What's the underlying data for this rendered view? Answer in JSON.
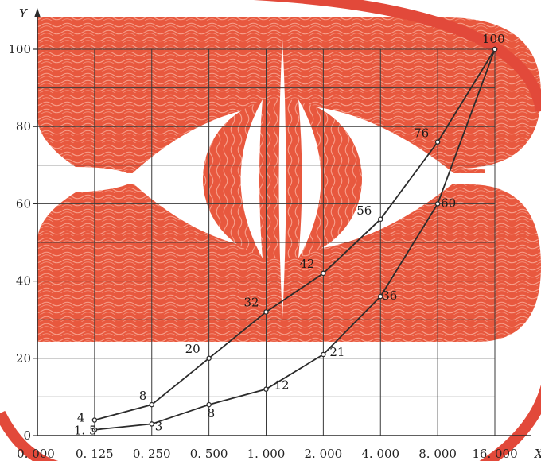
{
  "chart_data": {
    "type": "line",
    "title": "",
    "xlabel": "X",
    "ylabel": "Y",
    "x_categories": [
      "0.000",
      "0.125",
      "0.250",
      "0.500",
      "1.000",
      "2.000",
      "4.000",
      "8.000",
      "16.000"
    ],
    "x_tick_labels": [
      "0. 000",
      "0. 125",
      "0. 250",
      "0. 500",
      "1. 000",
      "2. 000",
      "4. 000",
      "8. 000",
      "16. 000"
    ],
    "y_ticks": [
      0,
      20,
      40,
      60,
      80,
      100
    ],
    "ylim": [
      0,
      100
    ],
    "grid": true,
    "series": [
      {
        "x": [
          "0.125",
          "0.250",
          "0.500",
          "1.000",
          "2.000",
          "4.000",
          "8.000",
          "16.000"
        ],
        "values": [
          4,
          8,
          20,
          32,
          42,
          56,
          76,
          100
        ],
        "labels": [
          "4",
          "8",
          "20",
          "32",
          "42",
          "56",
          "76",
          "100"
        ]
      },
      {
        "x": [
          "0.125",
          "0.250",
          "0.500",
          "1.000",
          "2.000",
          "4.000",
          "8.000",
          "16.000"
        ],
        "values": [
          1.5,
          3,
          8,
          12,
          21,
          36,
          60,
          100
        ],
        "labels": [
          "1. 5",
          "3",
          "8",
          "12",
          "21",
          "36",
          "60",
          ""
        ]
      }
    ],
    "background": "red emblem of an eye on two curved bands",
    "colors": {
      "line": "#2b2b2b",
      "grid": "#3a3a3a",
      "emblem": "#e8583e",
      "emblem_pattern": "#f7a08c",
      "ring": "#e2493a"
    }
  }
}
